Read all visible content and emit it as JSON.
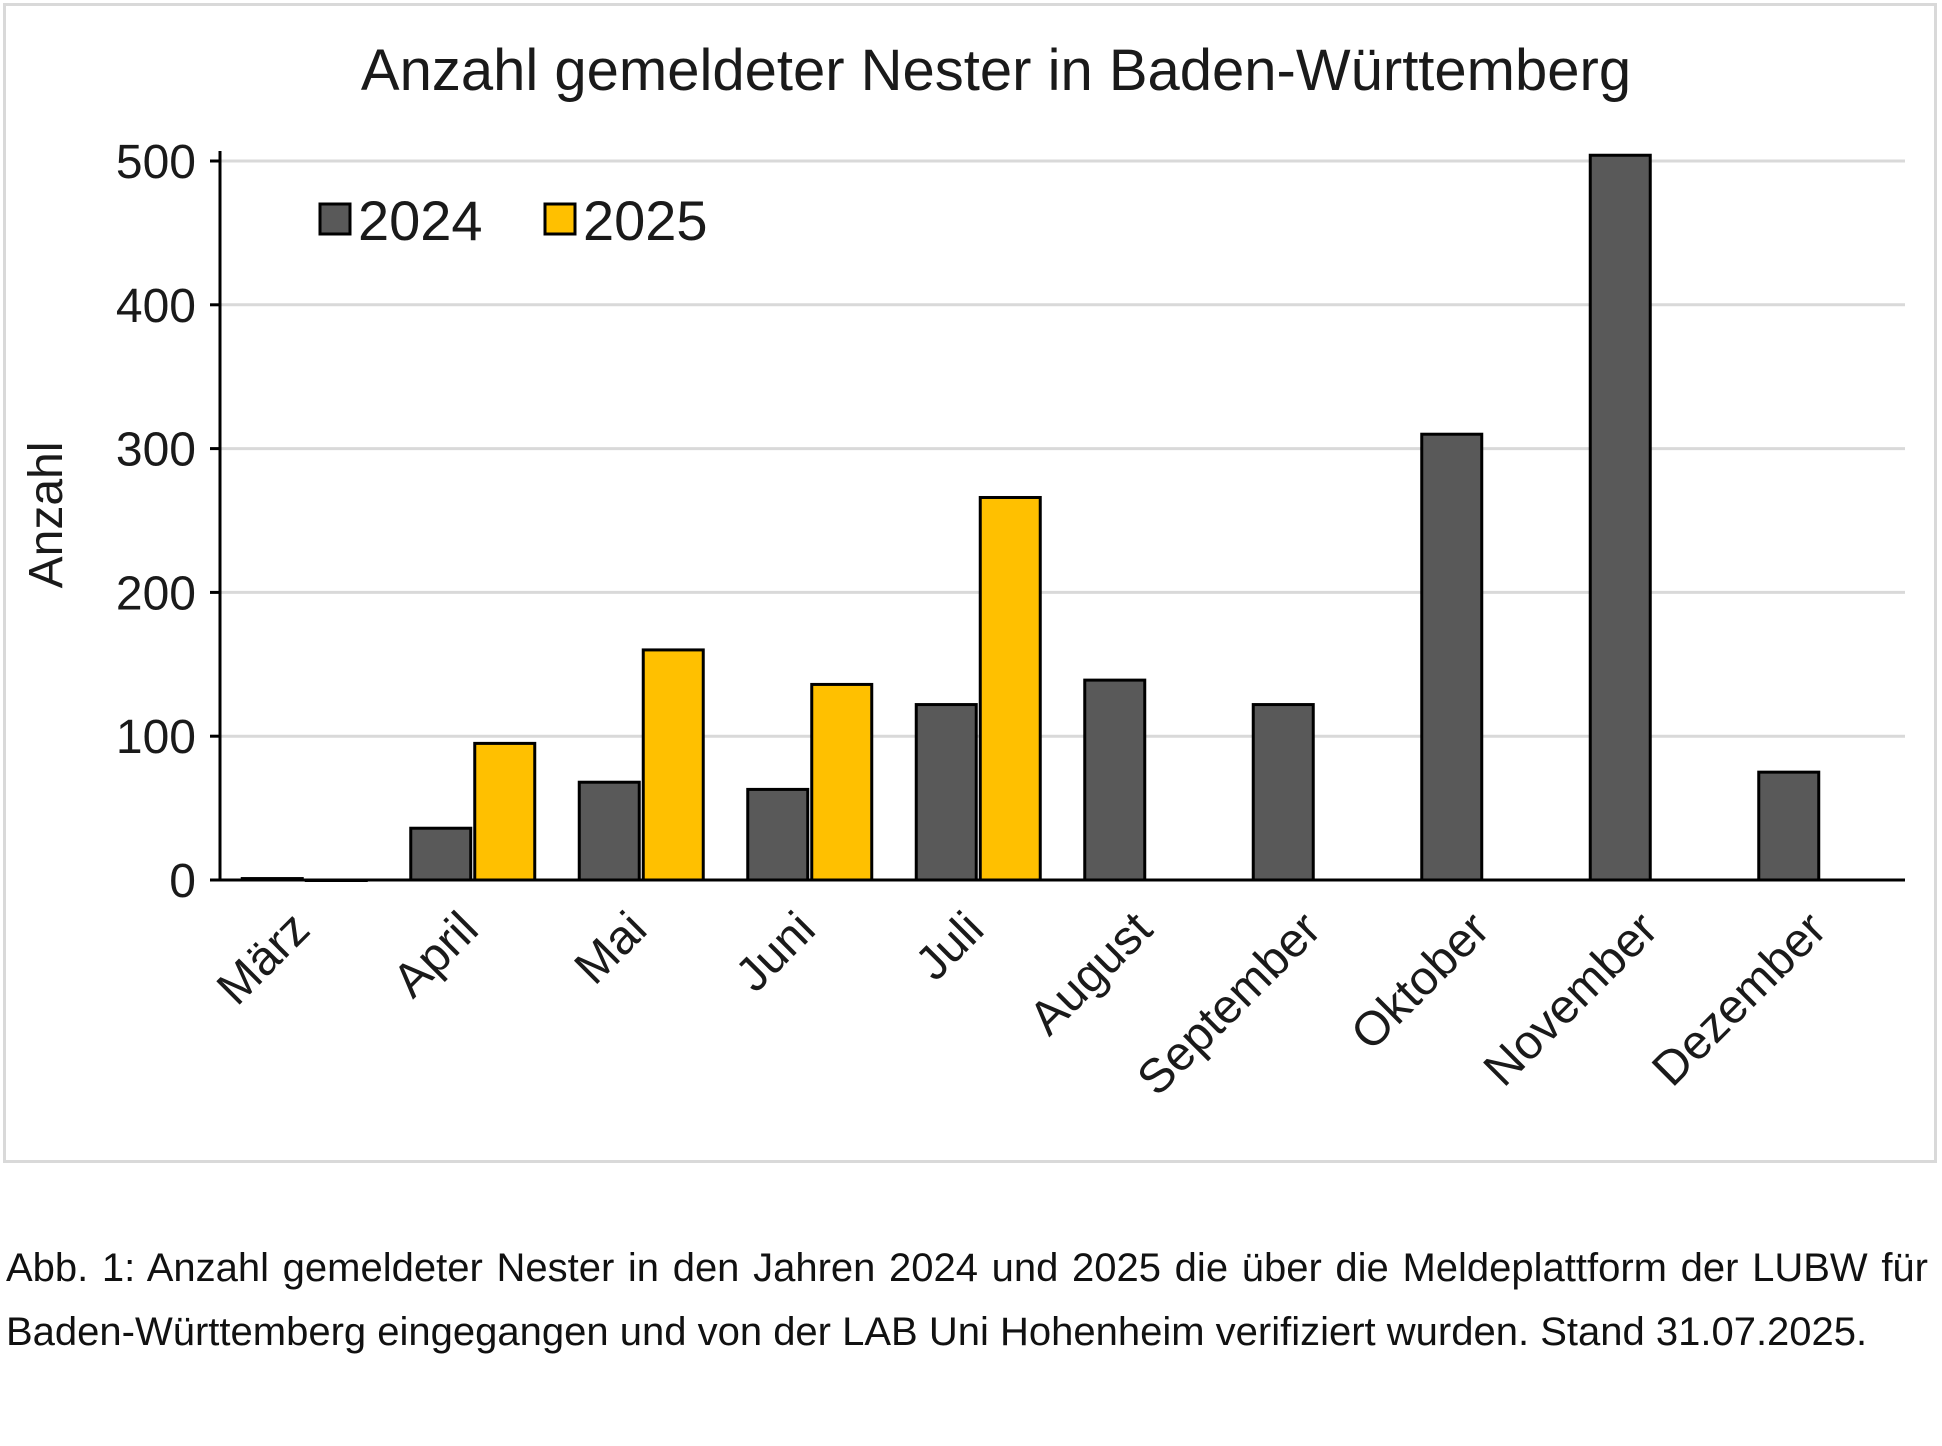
{
  "chart_data": {
    "type": "bar",
    "title": "Anzahl gemeldeter Nester in Baden-Württemberg",
    "xlabel": "",
    "ylabel": "Anzahl",
    "ylim": [
      0,
      500
    ],
    "yticks": [
      0,
      100,
      200,
      300,
      400,
      500
    ],
    "categories": [
      "März",
      "April",
      "Mai",
      "Juni",
      "Juli",
      "August",
      "September",
      "Oktober",
      "November",
      "Dezember"
    ],
    "series": [
      {
        "name": "2024",
        "color": "#595959",
        "values": [
          1,
          36,
          68,
          63,
          122,
          139,
          122,
          310,
          504,
          75
        ]
      },
      {
        "name": "2025",
        "color": "#ffc000",
        "values": [
          0,
          95,
          160,
          136,
          266,
          null,
          null,
          null,
          null,
          null
        ]
      }
    ],
    "grid": true,
    "legend": "top-left"
  },
  "caption": "Abb. 1: Anzahl gemeldeter Nester in den Jahren 2024 und 2025 die über die Meldeplattform der LUBW für Baden-Württemberg eingegangen und von der LAB Uni Hohenheim verifiziert wurden. Stand 31.07.2025."
}
